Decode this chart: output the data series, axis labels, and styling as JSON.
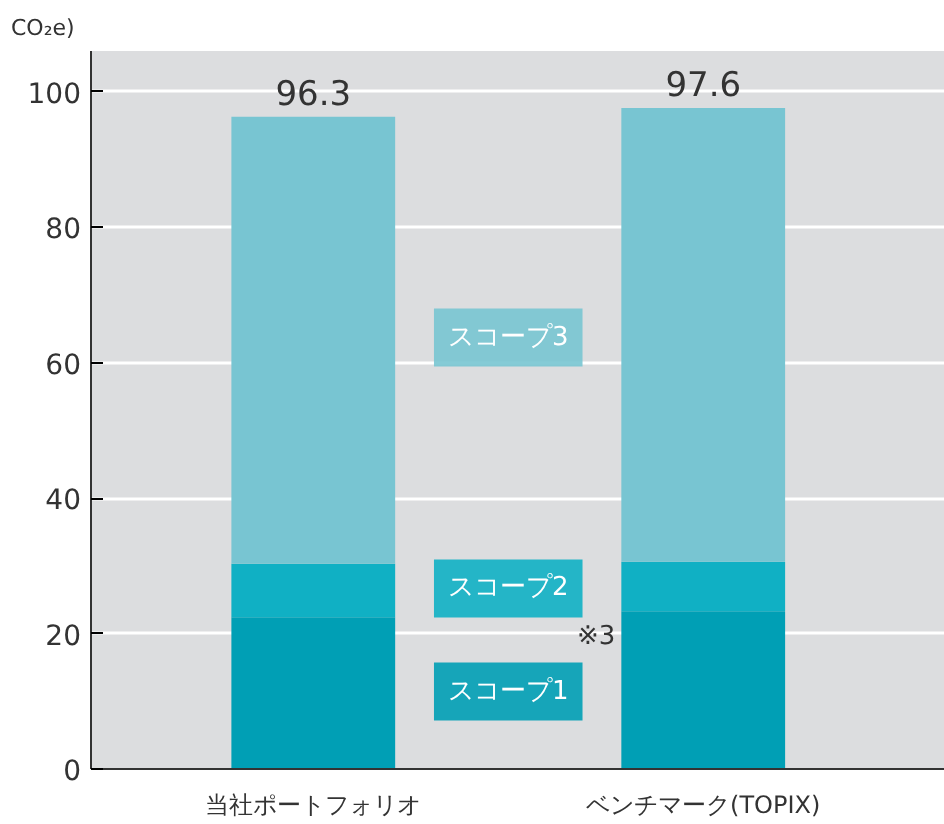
{
  "chart_data": {
    "type": "bar",
    "ylabel": "CO₂e)",
    "stacked": true,
    "categories": [
      "当社ポートフォリオ",
      "ベンチマーク(TOPIX)"
    ],
    "series": [
      {
        "name": "スコープ1",
        "color": "#009fb5",
        "values": [
          22.4,
          23.3
        ]
      },
      {
        "name": "スコープ2",
        "color": "#10b0c4",
        "values": [
          7.9,
          7.3
        ]
      },
      {
        "name": "スコープ3",
        "color": "#78c5d2",
        "values": [
          66.0,
          67.0
        ]
      }
    ],
    "totals": [
      "96.3",
      "97.6"
    ],
    "annotations": [
      "※3"
    ],
    "ylim": [
      0,
      106
    ],
    "yticks": [
      0,
      20,
      40,
      60,
      80,
      100
    ],
    "grid": "y",
    "legend": "center"
  }
}
